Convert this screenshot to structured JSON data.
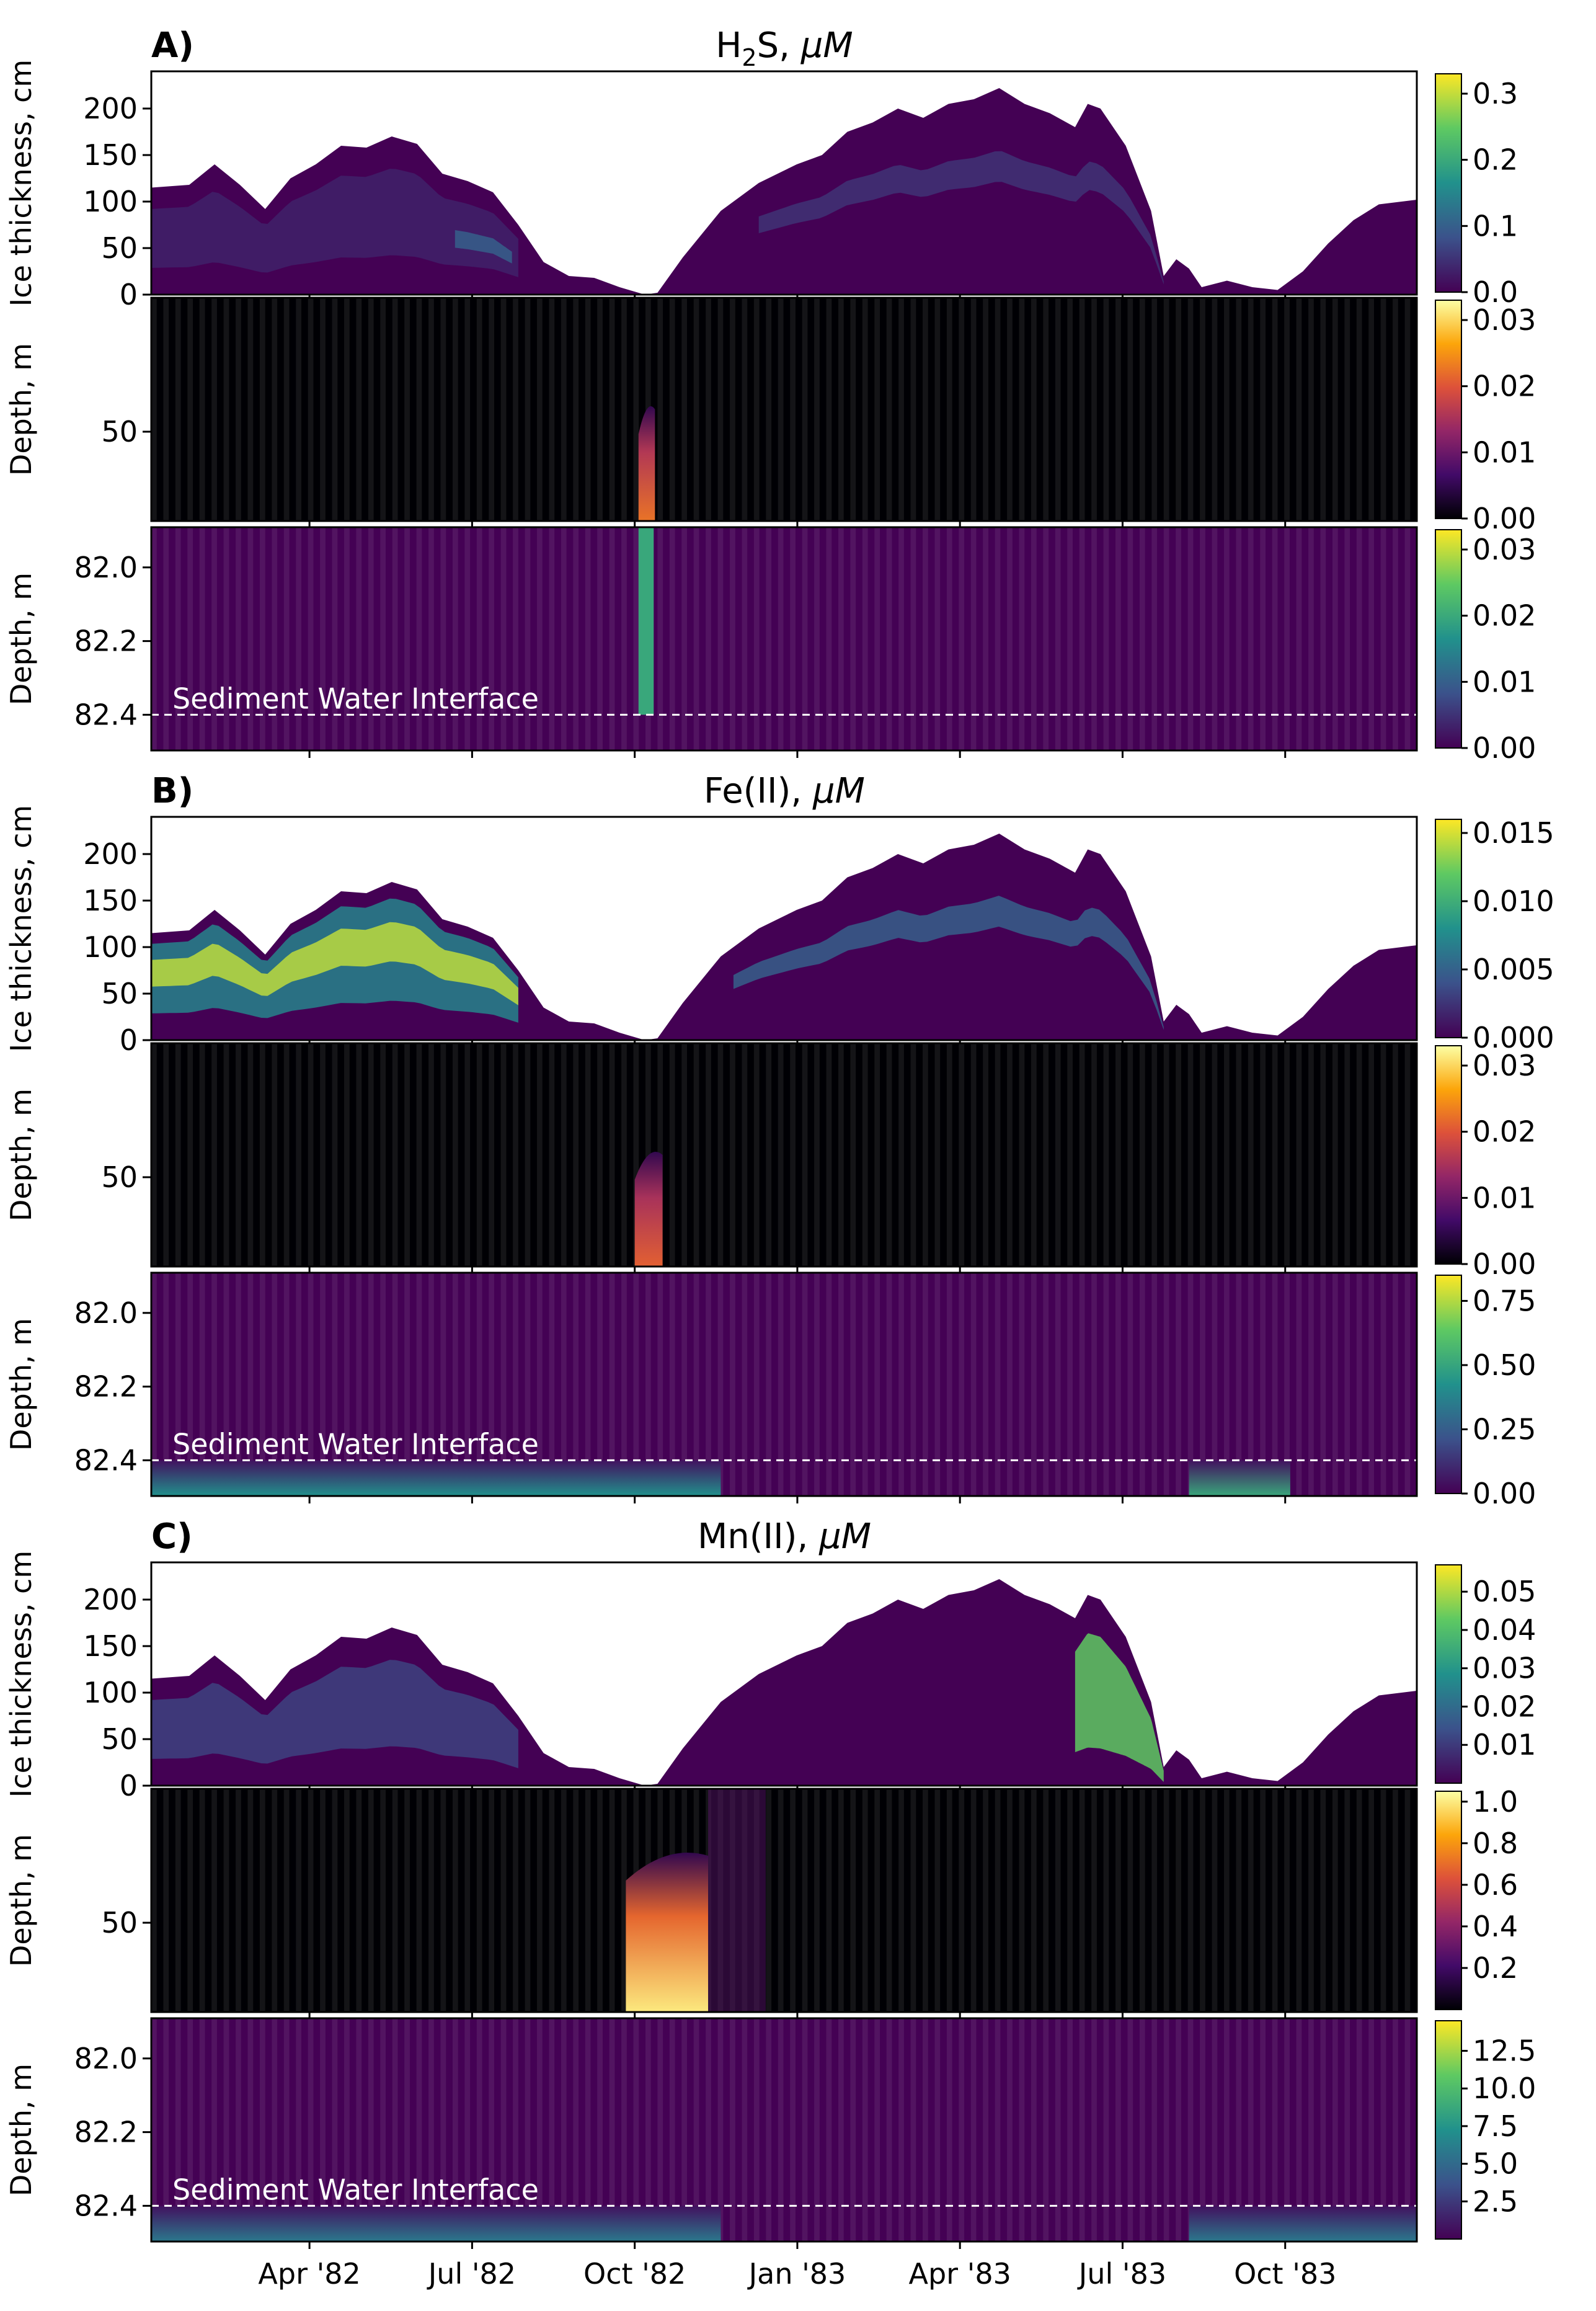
{
  "figure": {
    "colormaps": {
      "viridis": [
        "#440154",
        "#3b528b",
        "#21918c",
        "#5ec962",
        "#fde725"
      ],
      "inferno": [
        "#000004",
        "#420a68",
        "#932667",
        "#dd513a",
        "#fca50a",
        "#fcffa4"
      ]
    },
    "ice_background": "#440154",
    "water_background": "#000004",
    "x_ticks": [
      "Apr '82",
      "Jul '82",
      "Oct '82",
      "Jan '83",
      "Apr '83",
      "Jul '83",
      "Oct '83"
    ],
    "sediment_label": "Sediment Water Interface"
  },
  "chart_data": [
    {
      "type": "heatmap",
      "group": "A",
      "group_label": "A)",
      "title_main": "H",
      "title_sub": "2",
      "title_rest": "S, ",
      "title_unit": "μM",
      "panels": [
        {
          "kind": "ice",
          "ylabel": "Ice thickness, cm",
          "yticks": [
            "200",
            "150",
            "100",
            "50",
            "0"
          ],
          "yrange": [
            0,
            240
          ],
          "colormap": "viridis",
          "cbar_ticks": [
            "0.3",
            "0.2",
            "0.1",
            "0.0"
          ],
          "cbar_range": [
            0,
            0.33
          ],
          "features": [
            {
              "start": 0.0,
              "end": 0.29,
              "depth_frac": [
                0.2,
                0.75
              ],
              "value": 0.1,
              "note": "diffuse band"
            },
            {
              "start": 0.24,
              "end": 0.285,
              "depth_frac": [
                0.45,
                0.6
              ],
              "value": 0.3,
              "note": "yellow streak"
            },
            {
              "start": 0.48,
              "end": 0.8,
              "depth_frac": [
                0.3,
                0.45
              ],
              "value": 0.15,
              "note": "cyan band"
            }
          ]
        },
        {
          "kind": "water",
          "ylabel": "Depth, m",
          "yticks": [
            "50"
          ],
          "colormap": "inferno",
          "cbar_ticks": [
            "0.03",
            "0.02",
            "0.01",
            "0.00"
          ],
          "cbar_range": [
            0,
            0.033
          ],
          "plume": {
            "x": 0.385,
            "width": 0.013,
            "top_frac": 0.5,
            "intensity": 0.7
          }
        },
        {
          "kind": "sediment",
          "ylabel": "Depth, m",
          "yticks": [
            "82.0",
            "82.2",
            "82.4"
          ],
          "colormap": "viridis",
          "cbar_ticks": [
            "0.03",
            "0.02",
            "0.01",
            "0.00"
          ],
          "cbar_range": [
            0,
            0.033
          ],
          "column": {
            "x": 0.385,
            "width": 0.012,
            "value": 0.6
          },
          "bottom_glow": []
        }
      ]
    },
    {
      "type": "heatmap",
      "group": "B",
      "group_label": "B)",
      "title_main": "Fe(II), ",
      "title_sub": "",
      "title_rest": "",
      "title_unit": "μM",
      "panels": [
        {
          "kind": "ice",
          "ylabel": "Ice thickness, cm",
          "yticks": [
            "200",
            "150",
            "100",
            "50",
            "0"
          ],
          "yrange": [
            0,
            240
          ],
          "colormap": "viridis",
          "cbar_ticks": [
            "0.015",
            "0.010",
            "0.005",
            "0.000"
          ],
          "cbar_range": [
            0,
            0.016
          ],
          "features": [
            {
              "start": 0.0,
              "end": 0.29,
              "depth_frac": [
                0.1,
                0.75
              ],
              "value": 0.45,
              "note": "wide band"
            },
            {
              "start": 0.0,
              "end": 0.29,
              "depth_frac": [
                0.25,
                0.5
              ],
              "value": 0.9,
              "note": "yellow core"
            },
            {
              "start": 0.46,
              "end": 0.8,
              "depth_frac": [
                0.3,
                0.45
              ],
              "value": 0.3,
              "note": "cyan band"
            }
          ]
        },
        {
          "kind": "water",
          "ylabel": "Depth, m",
          "yticks": [
            "50"
          ],
          "colormap": "inferno",
          "cbar_ticks": [
            "0.03",
            "0.02",
            "0.01",
            "0.00"
          ],
          "cbar_range": [
            0,
            0.033
          ],
          "plume": {
            "x": 0.382,
            "width": 0.022,
            "top_frac": 0.5,
            "intensity": 0.65
          }
        },
        {
          "kind": "sediment",
          "ylabel": "Depth, m",
          "yticks": [
            "82.0",
            "82.2",
            "82.4"
          ],
          "colormap": "viridis",
          "cbar_ticks": [
            "0.75",
            "0.50",
            "0.25",
            "0.00"
          ],
          "cbar_range": [
            0,
            0.85
          ],
          "column": null,
          "bottom_glow": [
            {
              "start": 0.0,
              "end": 0.45,
              "value": 0.5
            },
            {
              "start": 0.82,
              "end": 0.9,
              "value": 0.6
            }
          ]
        }
      ]
    },
    {
      "type": "heatmap",
      "group": "C",
      "group_label": "C)",
      "title_main": "Mn(II), ",
      "title_sub": "",
      "title_rest": "",
      "title_unit": "μM",
      "panels": [
        {
          "kind": "ice",
          "ylabel": "Ice thickness, cm",
          "yticks": [
            "200",
            "150",
            "100",
            "50",
            "0"
          ],
          "yrange": [
            0,
            240
          ],
          "colormap": "viridis",
          "cbar_ticks": [
            "0.05",
            "0.04",
            "0.03",
            "0.02",
            "0.01"
          ],
          "cbar_range": [
            0,
            0.057
          ],
          "features": [
            {
              "start": 0.0,
              "end": 0.29,
              "depth_frac": [
                0.2,
                0.75
              ],
              "value": 0.2,
              "note": "faint band"
            },
            {
              "start": 0.73,
              "end": 0.8,
              "depth_frac": [
                0.2,
                0.8
              ],
              "value": 0.75,
              "note": "diagonal streak"
            }
          ]
        },
        {
          "kind": "water",
          "ylabel": "Depth, m",
          "yticks": [
            "50"
          ],
          "colormap": "inferno",
          "cbar_ticks": [
            "1.0",
            "0.8",
            "0.6",
            "0.4",
            "0.2"
          ],
          "cbar_range": [
            0,
            1.05
          ],
          "plume": {
            "x": 0.375,
            "width": 0.065,
            "top_frac": 0.3,
            "intensity": 1.0
          }
        },
        {
          "kind": "sediment",
          "ylabel": "Depth, m",
          "yticks": [
            "82.0",
            "82.2",
            "82.4"
          ],
          "colormap": "viridis",
          "cbar_ticks": [
            "12.5",
            "10.0",
            "7.5",
            "5.0",
            "2.5"
          ],
          "cbar_range": [
            0,
            14.5
          ],
          "column": null,
          "bottom_glow": [
            {
              "start": 0.0,
              "end": 0.45,
              "value": 0.4
            },
            {
              "start": 0.82,
              "end": 1.0,
              "value": 0.4
            }
          ]
        }
      ]
    }
  ]
}
